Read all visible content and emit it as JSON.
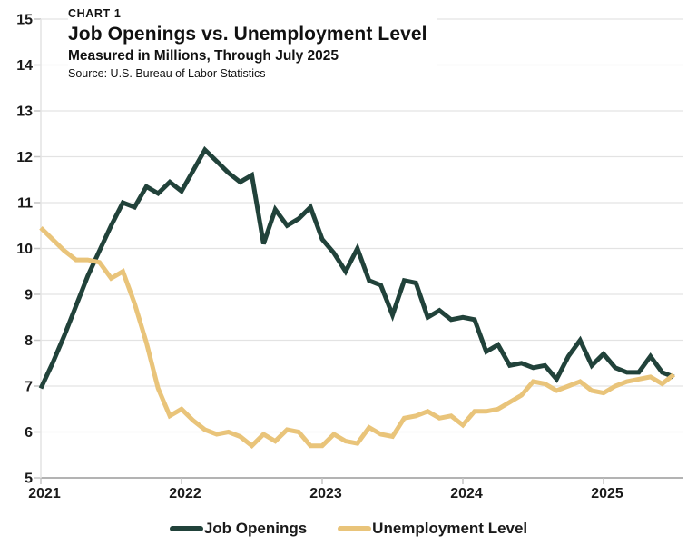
{
  "header": {
    "kicker": "CHART 1",
    "title": "Job Openings vs. Unemployment Level",
    "subtitle": "Measured in Millions, Through July 2025",
    "source": "Source: U.S. Bureau of Labor Statistics"
  },
  "chart_data": {
    "type": "line",
    "title": "Job Openings vs. Unemployment Level",
    "subtitle": "Measured in Millions, Through July 2025",
    "x_unit": "month",
    "x_start": "2021-01",
    "x_end": "2025-07",
    "x_tick_labels": [
      "2021",
      "2022",
      "2023",
      "2024",
      "2025"
    ],
    "y_ticks": [
      5,
      6,
      7,
      8,
      9,
      10,
      11,
      12,
      13,
      14,
      15
    ],
    "ylim": [
      5,
      15
    ],
    "grid": true,
    "legend_position": "bottom-center",
    "colors": {
      "grid": "#e3e3e3",
      "axis": "#b3b3b3",
      "tick": "#c4c4c4",
      "label": "#1a1a1a"
    },
    "series": [
      {
        "name": "Job Openings",
        "color": "#21423a",
        "values": [
          6.95,
          7.5,
          8.1,
          8.75,
          9.4,
          9.95,
          10.5,
          11.0,
          10.9,
          11.35,
          11.2,
          11.45,
          11.25,
          11.7,
          12.15,
          11.9,
          11.65,
          11.45,
          11.6,
          10.1,
          10.85,
          10.5,
          10.65,
          10.9,
          10.2,
          9.9,
          9.5,
          10.0,
          9.3,
          9.2,
          8.55,
          9.3,
          9.25,
          8.5,
          8.65,
          8.45,
          8.5,
          8.45,
          7.75,
          7.9,
          7.45,
          7.5,
          7.4,
          7.45,
          7.15,
          7.65,
          8.0,
          7.45,
          7.7,
          7.4,
          7.3,
          7.3,
          7.65,
          7.3,
          7.2
        ]
      },
      {
        "name": "Unemployment Level",
        "color": "#e9c47a",
        "values": [
          10.45,
          10.2,
          9.95,
          9.75,
          9.75,
          9.7,
          9.35,
          9.5,
          8.8,
          7.95,
          6.95,
          6.35,
          6.5,
          6.25,
          6.05,
          5.95,
          6.0,
          5.9,
          5.7,
          5.95,
          5.8,
          6.05,
          6.0,
          5.7,
          5.7,
          5.95,
          5.8,
          5.75,
          6.1,
          5.95,
          5.9,
          6.3,
          6.35,
          6.45,
          6.3,
          6.35,
          6.15,
          6.45,
          6.45,
          6.5,
          6.65,
          6.8,
          7.1,
          7.05,
          6.9,
          7.0,
          7.1,
          6.9,
          6.85,
          7.0,
          7.1,
          7.15,
          7.2,
          7.05,
          7.25
        ]
      }
    ]
  }
}
